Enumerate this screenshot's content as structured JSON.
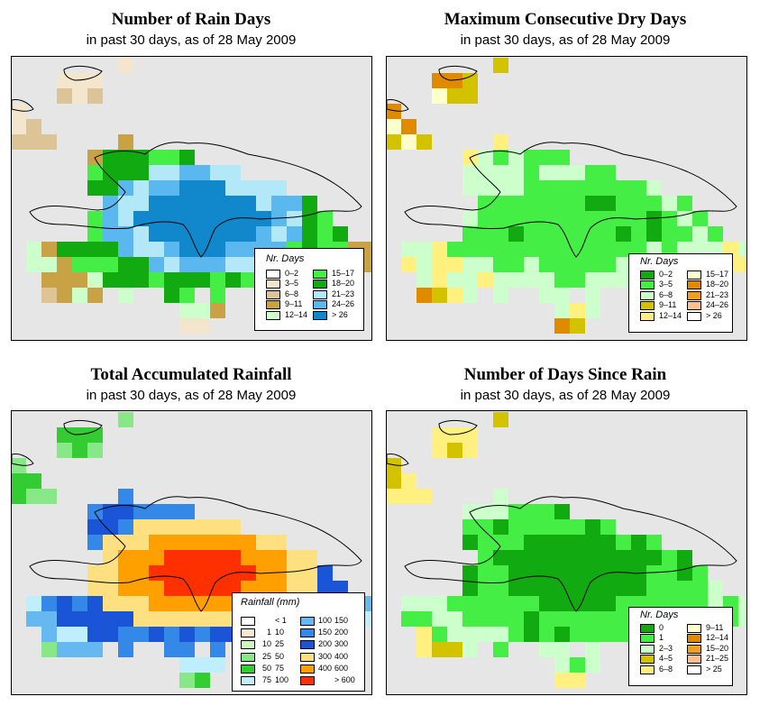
{
  "panels": [
    {
      "id": "rain-days",
      "title": "Number of Rain Days",
      "subtitle": "in past 30 days, as of  28 May 2009",
      "legend": {
        "title": "Nr. Days",
        "items": [
          {
            "label": "0–2",
            "color": "#ffffff"
          },
          {
            "label": "3–5",
            "color": "#f4e6cc"
          },
          {
            "label": "6–8",
            "color": "#dcc496"
          },
          {
            "label": "9–11",
            "color": "#c8a245"
          },
          {
            "label": "12–14",
            "color": "#ccffcc"
          },
          {
            "label": "15–17",
            "color": "#44ee44"
          },
          {
            "label": "18–20",
            "color": "#11aa11"
          },
          {
            "label": "21–23",
            "color": "#b3e8f8"
          },
          {
            "label": "24–26",
            "color": "#5ab8ee"
          },
          {
            "label": "> 26",
            "color": "#1188cc"
          }
        ]
      }
    },
    {
      "id": "dry-days",
      "title": "Maximum Consecutive Dry Days",
      "subtitle": "in past 30 days, as of  28 May 2009",
      "legend": {
        "title": "Nr. Days",
        "items": [
          {
            "label": "0–2",
            "color": "#11aa11"
          },
          {
            "label": "3–5",
            "color": "#44ee44"
          },
          {
            "label": "6–8",
            "color": "#ccffcc"
          },
          {
            "label": "9–11",
            "color": "#d2c200"
          },
          {
            "label": "12–14",
            "color": "#fff080"
          },
          {
            "label": "15–17",
            "color": "#ffffcc"
          },
          {
            "label": "18–20",
            "color": "#e08a00"
          },
          {
            "label": "21–23",
            "color": "#f0a020"
          },
          {
            "label": "24–26",
            "color": "#ffc090"
          },
          {
            "label": "> 26",
            "color": "#ffffff"
          }
        ]
      }
    },
    {
      "id": "rainfall",
      "title": "Total Accumulated Rainfall",
      "subtitle": "in past 30 days, as of  28 May 2009",
      "legend": {
        "title": "Rainfall (mm)",
        "items": [
          {
            "lo": "",
            "hi": "< 1",
            "color": "#ffffff"
          },
          {
            "lo": "1",
            "hi": "10",
            "color": "#f8e8d0"
          },
          {
            "lo": "10",
            "hi": "25",
            "color": "#ccf5c0"
          },
          {
            "lo": "25",
            "hi": "50",
            "color": "#88e888"
          },
          {
            "lo": "50",
            "hi": "75",
            "color": "#33cc33"
          },
          {
            "lo": "75",
            "hi": "100",
            "color": "#bfeeff"
          },
          {
            "lo": "100",
            "hi": "150",
            "color": "#66b8f0"
          },
          {
            "lo": "150",
            "hi": "200",
            "color": "#3388e8"
          },
          {
            "lo": "200",
            "hi": "300",
            "color": "#1a55d8"
          },
          {
            "lo": "300",
            "hi": "400",
            "color": "#ffe080"
          },
          {
            "lo": "400",
            "hi": "600",
            "color": "#ffa000"
          },
          {
            "lo": "",
            "hi": "> 600",
            "color": "#ff3000"
          }
        ]
      }
    },
    {
      "id": "since-rain",
      "title": "Number of Days Since Rain",
      "subtitle": "in past 30 days, as of  28 May 2009",
      "legend": {
        "title": "Nr. Days",
        "items": [
          {
            "label": "0",
            "color": "#11aa11"
          },
          {
            "label": "1",
            "color": "#44ee44"
          },
          {
            "label": "2–3",
            "color": "#ccffcc"
          },
          {
            "label": "4–5",
            "color": "#d2c200"
          },
          {
            "label": "6–8",
            "color": "#fff080"
          },
          {
            "label": "9–11",
            "color": "#ffffcc"
          },
          {
            "label": "12–14",
            "color": "#e08a00"
          },
          {
            "label": "15–20",
            "color": "#f0a020"
          },
          {
            "label": "21–25",
            "color": "#ffc090"
          },
          {
            "label": "> 25",
            "color": "#ffffff"
          }
        ]
      }
    }
  ]
}
